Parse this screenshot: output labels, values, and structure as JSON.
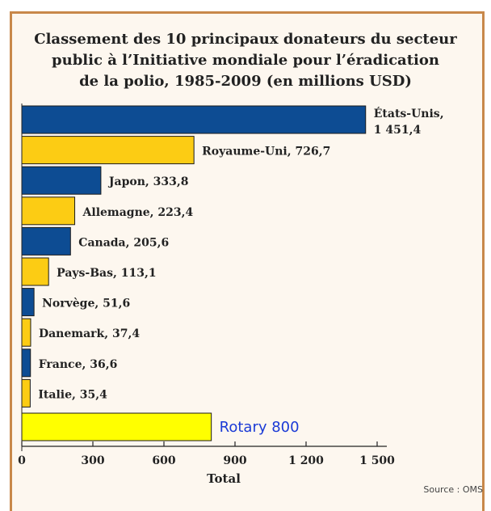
{
  "chart_data": {
    "type": "bar",
    "orientation": "horizontal",
    "title_lines": [
      "Classement des 10 principaux donateurs du secteur",
      "public à l’Initiative mondiale pour l’éradication",
      "de la polio, 1985-2009 (en millions USD)"
    ],
    "xlabel": "Total",
    "xlim": [
      0,
      1500
    ],
    "xticks": [
      0,
      300,
      600,
      900,
      1200,
      1500
    ],
    "xtick_labels": [
      "0",
      "300",
      "600",
      "900",
      "1 200",
      "1 500"
    ],
    "bars": [
      {
        "name": "États-Unis",
        "value": 1451.4,
        "label_lines": [
          "États-Unis,",
          "1 451,4"
        ],
        "color": "#0d4c93"
      },
      {
        "name": "Royaume-Uni",
        "value": 726.7,
        "label_lines": [
          "Royaume-Uni, 726,7"
        ],
        "color": "#fccc14"
      },
      {
        "name": "Japon",
        "value": 333.8,
        "label_lines": [
          "Japon, 333,8"
        ],
        "color": "#0d4c93"
      },
      {
        "name": "Allemagne",
        "value": 223.4,
        "label_lines": [
          "Allemagne, 223,4"
        ],
        "color": "#fccc14"
      },
      {
        "name": "Canada",
        "value": 205.6,
        "label_lines": [
          "Canada, 205,6"
        ],
        "color": "#0d4c93"
      },
      {
        "name": "Pays-Bas",
        "value": 113.1,
        "label_lines": [
          "Pays-Bas, 113,1"
        ],
        "color": "#fccc14"
      },
      {
        "name": "Norvège",
        "value": 51.6,
        "label_lines": [
          "Norvège, 51,6"
        ],
        "color": "#0d4c93"
      },
      {
        "name": "Danemark",
        "value": 37.4,
        "label_lines": [
          "Danemark, 37,4"
        ],
        "color": "#fccc14"
      },
      {
        "name": "France",
        "value": 36.6,
        "label_lines": [
          "France, 36,6"
        ],
        "color": "#0d4c93"
      },
      {
        "name": "Italie",
        "value": 35.4,
        "label_lines": [
          "Italie, 35,4"
        ],
        "color": "#fccc14"
      },
      {
        "name": "Rotary",
        "value": 800,
        "label_lines": [
          "Rotary 800"
        ],
        "color": "#ffff00",
        "label_color": "#1a3ad6",
        "annotation": true
      }
    ]
  },
  "source": "Source : OMS",
  "colors": {
    "frame": "#c8884a",
    "background": "#fdf7ef",
    "axis": "#222222"
  }
}
